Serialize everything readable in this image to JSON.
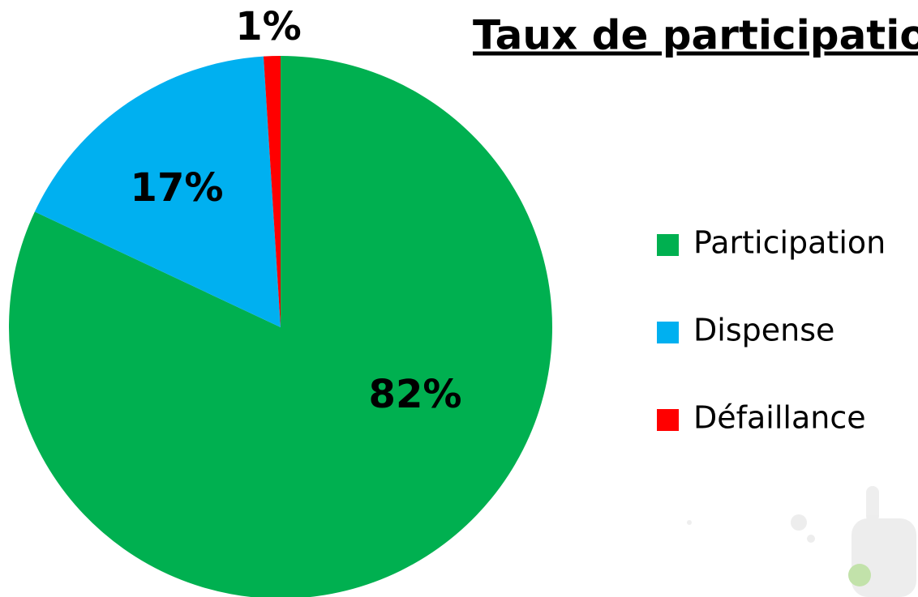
{
  "chart_data": {
    "type": "pie",
    "title": "Taux de participation",
    "categories": [
      "Participation",
      "Dispense",
      "Défaillance"
    ],
    "values": [
      82,
      17,
      1
    ],
    "value_labels": [
      "82%",
      "17%",
      "1%"
    ],
    "colors": [
      "#00b050",
      "#00b0f0",
      "#ff0000"
    ],
    "legend": "right"
  }
}
